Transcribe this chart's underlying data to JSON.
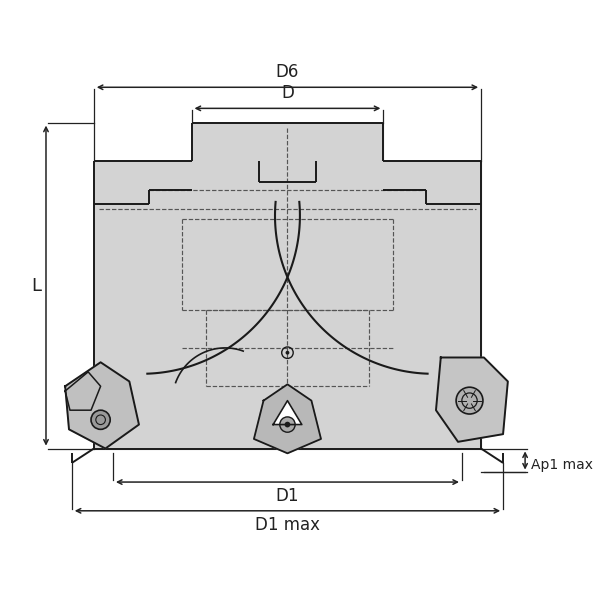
{
  "bg_color": "#ffffff",
  "body_color": "#d3d3d3",
  "line_color": "#1a1a1a",
  "dim_color": "#222222",
  "figsize": [
    6.0,
    6.0
  ],
  "dpi": 100,
  "labels": {
    "D6": "D6",
    "D": "D",
    "D1": "D1",
    "D1max": "D1 max",
    "L": "L",
    "Ap1max": "Ap1 max"
  }
}
